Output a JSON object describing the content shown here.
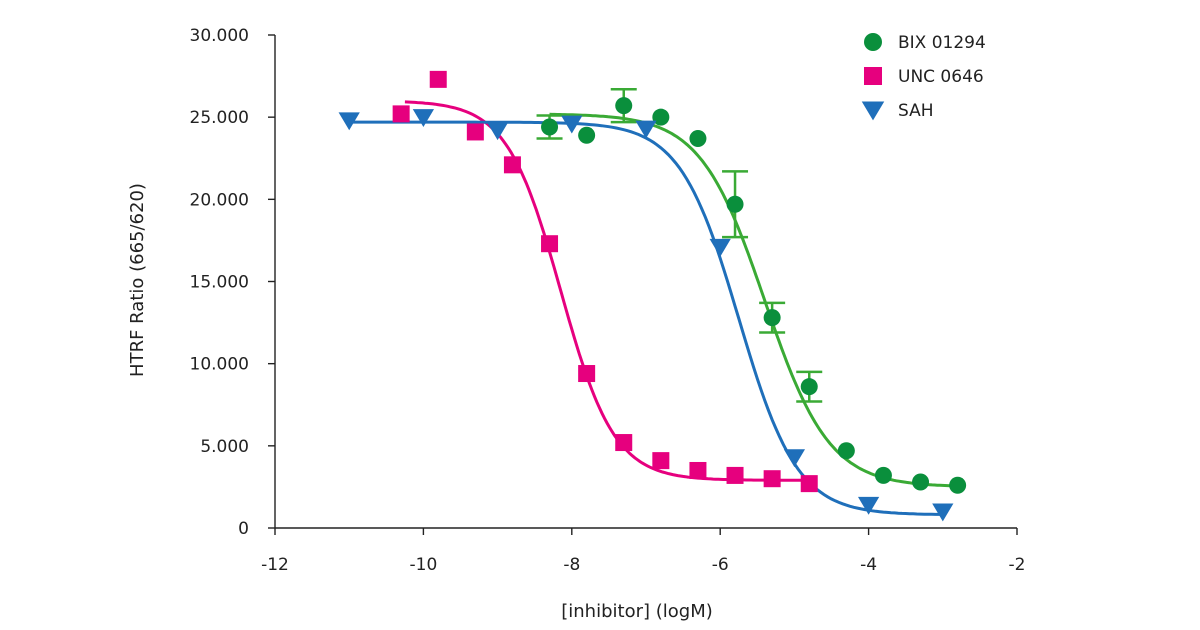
{
  "chart_data": {
    "type": "scatter",
    "title": "",
    "xlabel": "[inhibitor] (logM)",
    "ylabel": "HTRF Ratio (665/620)",
    "xlim": [
      -12,
      -2
    ],
    "ylim": [
      0,
      30000
    ],
    "x_ticks": [
      -12,
      -10,
      -8,
      -6,
      -4,
      -2
    ],
    "x_tick_labels": [
      "-12",
      "-10",
      "-8",
      "-6",
      "-4",
      "-2"
    ],
    "y_ticks": [
      0,
      5000,
      10000,
      15000,
      20000,
      25000,
      30000
    ],
    "y_tick_labels": [
      "0",
      "5.000",
      "10.000",
      "15.000",
      "20.000",
      "25.000",
      "30.000"
    ],
    "grid": false,
    "legend_position": "top-right",
    "series": [
      {
        "name": "BIX 01294",
        "marker": "circle",
        "color": "#0a8f3c",
        "fit_color": "#3aaa35",
        "points": [
          {
            "x": -8.3,
            "y": 24400,
            "err": 700
          },
          {
            "x": -7.8,
            "y": 23900
          },
          {
            "x": -7.3,
            "y": 25700,
            "err": 1000
          },
          {
            "x": -6.8,
            "y": 25000
          },
          {
            "x": -6.3,
            "y": 23700
          },
          {
            "x": -5.8,
            "y": 19700,
            "err": 2000
          },
          {
            "x": -5.3,
            "y": 12800,
            "err": 900
          },
          {
            "x": -4.8,
            "y": 8600,
            "err": 900
          },
          {
            "x": -4.3,
            "y": 4700
          },
          {
            "x": -3.8,
            "y": 3200
          },
          {
            "x": -3.3,
            "y": 2800
          },
          {
            "x": -2.8,
            "y": 2600
          }
        ],
        "fit": {
          "top": 25200,
          "bottom": 2500,
          "logIC50": -5.4,
          "hill": 1.0,
          "x_range": [
            -8.3,
            -2.8
          ]
        }
      },
      {
        "name": "UNC 0646",
        "marker": "square",
        "color": "#e6007e",
        "fit_color": "#e6007e",
        "points": [
          {
            "x": -10.3,
            "y": 25200
          },
          {
            "x": -9.8,
            "y": 27300
          },
          {
            "x": -9.3,
            "y": 24100
          },
          {
            "x": -8.8,
            "y": 22100
          },
          {
            "x": -8.3,
            "y": 17300
          },
          {
            "x": -7.8,
            "y": 9400
          },
          {
            "x": -7.3,
            "y": 5200
          },
          {
            "x": -6.8,
            "y": 4100
          },
          {
            "x": -6.3,
            "y": 3500
          },
          {
            "x": -5.8,
            "y": 3200
          },
          {
            "x": -5.3,
            "y": 3000
          },
          {
            "x": -4.8,
            "y": 2700
          }
        ],
        "fit": {
          "top": 26000,
          "bottom": 2900,
          "logIC50": -8.15,
          "hill": 1.2,
          "x_range": [
            -10.25,
            -4.8
          ]
        }
      },
      {
        "name": "SAH",
        "marker": "triangle-down",
        "color": "#1f6fba",
        "fit_color": "#1f6fba",
        "points": [
          {
            "x": -11.0,
            "y": 24800
          },
          {
            "x": -10.0,
            "y": 25000
          },
          {
            "x": -9.0,
            "y": 24200
          },
          {
            "x": -8.0,
            "y": 24600
          },
          {
            "x": -7.0,
            "y": 24300
          },
          {
            "x": -6.0,
            "y": 17100
          },
          {
            "x": -5.0,
            "y": 4300
          },
          {
            "x": -4.0,
            "y": 1400
          },
          {
            "x": -3.0,
            "y": 1000
          }
        ],
        "fit": {
          "top": 24700,
          "bottom": 800,
          "logIC50": -5.75,
          "hill": 1.1,
          "x_range": [
            -11.0,
            -3.0
          ]
        }
      }
    ]
  }
}
